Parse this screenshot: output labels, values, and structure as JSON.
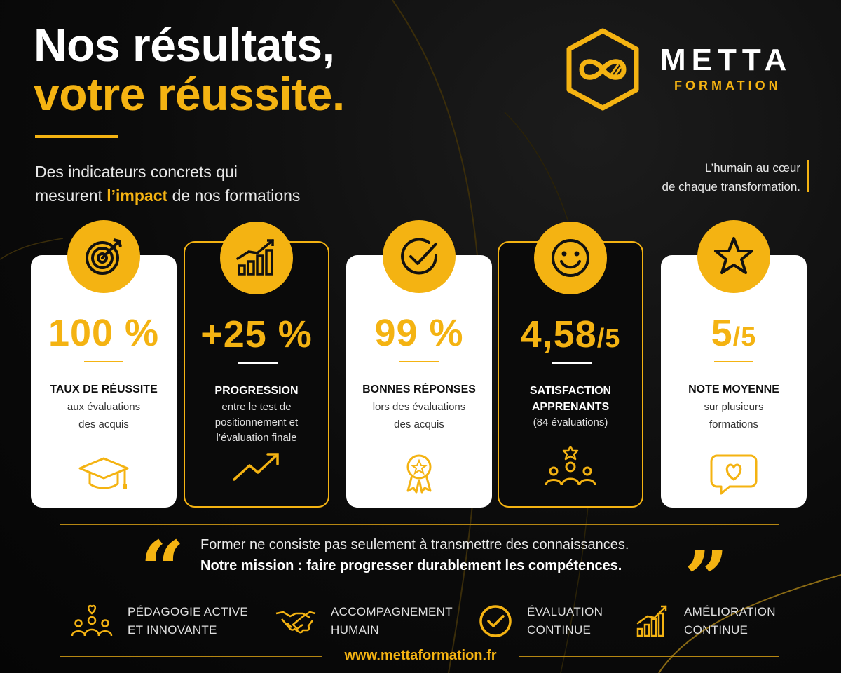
{
  "header": {
    "title_line1": "Nos résultats,",
    "title_line2": "votre réussite.",
    "subtitle_line1": "Des indicateurs concrets qui",
    "subtitle_line2_pre": "mesurent ",
    "subtitle_line2_highlight": "l’impact",
    "subtitle_line2_post": " de nos formations",
    "tagline_line1": "L’humain au cœur",
    "tagline_line2": "de chaque transformation."
  },
  "brand": {
    "name": "METTA",
    "sub": "FORMATION"
  },
  "colors": {
    "accent": "#f4b312",
    "background": "#0b0b0b",
    "card_white": "#ffffff"
  },
  "cards": [
    {
      "badge_icon": "target-icon",
      "stat": "100 %",
      "title": "TAUX DE RÉUSSITE",
      "desc_line1": "aux évaluations",
      "desc_line2": "des acquis",
      "bottom_icon": "graduation-cap-icon",
      "style": "white"
    },
    {
      "badge_icon": "bar-chart-growth-icon",
      "stat": "+25 %",
      "title": "PROGRESSION",
      "desc_line1": "entre le test de",
      "desc_line2": "positionnement et",
      "desc_line3": "l’évaluation finale",
      "bottom_icon": "trend-up-arrow-icon",
      "style": "dark"
    },
    {
      "badge_icon": "check-circle-icon",
      "stat": "99 %",
      "title": "BONNES RÉPONSES",
      "desc_line1": "lors des évaluations",
      "desc_line2": "des acquis",
      "bottom_icon": "award-ribbon-icon",
      "style": "white"
    },
    {
      "badge_icon": "smiley-icon",
      "stat_main": "4,58",
      "stat_suffix": "/5",
      "title_line1": "SATISFACTION",
      "title_line2": "APPRENANTS",
      "desc_line1": "(84 évaluations)",
      "bottom_icon": "team-star-icon",
      "style": "dark"
    },
    {
      "badge_icon": "star-icon",
      "stat_main": "5",
      "stat_suffix": "/5",
      "title": "NOTE MOYENNE",
      "desc_line1": "sur plusieurs",
      "desc_line2": "formations",
      "bottom_icon": "heart-chat-icon",
      "style": "white"
    }
  ],
  "quote": {
    "line1": "Former ne consiste pas seulement à transmettre des connaissances.",
    "line2": "Notre mission : faire progresser durablement les compétences.",
    "open_mark": "“",
    "close_mark": "”"
  },
  "values": [
    {
      "icon": "people-heart-icon",
      "line1": "PÉDAGOGIE ACTIVE",
      "line2": "ET INNOVANTE"
    },
    {
      "icon": "handshake-icon",
      "line1": "ACCOMPAGNEMENT",
      "line2": "HUMAIN"
    },
    {
      "icon": "check-circle-icon",
      "line1": "ÉVALUATION",
      "line2": "CONTINUE"
    },
    {
      "icon": "growth-chart-icon",
      "line1": "AMÉLIORATION",
      "line2": "CONTINUE"
    }
  ],
  "footer": {
    "url": "www.mettaformation.fr"
  }
}
